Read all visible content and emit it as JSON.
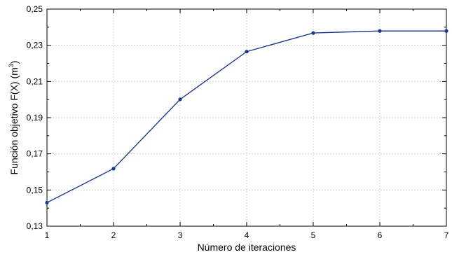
{
  "chart_data": {
    "type": "line",
    "xlabel": "Número de iteraciones",
    "ylabel": "Función objetivo F(X) (m",
    "ylabel_superscript": "3",
    "ylabel_suffix": ")",
    "xlim": [
      1,
      7
    ],
    "ylim": [
      0.13,
      0.25
    ],
    "x_ticks": [
      1,
      2,
      3,
      4,
      5,
      6,
      7
    ],
    "x_tick_labels": [
      "1",
      "2",
      "3",
      "4",
      "5",
      "6",
      "7"
    ],
    "y_ticks": [
      0.13,
      0.15,
      0.17,
      0.19,
      0.21,
      0.23,
      0.25
    ],
    "y_tick_labels": [
      "0,13",
      "0,15",
      "0,17",
      "0,19",
      "0,21",
      "0,23",
      "0,25"
    ],
    "grid": true,
    "series": [
      {
        "x": [
          1,
          2,
          3,
          4,
          5,
          6,
          7
        ],
        "y": [
          0.143,
          0.1618,
          0.2001,
          0.2265,
          0.2368,
          0.2379,
          0.2379
        ],
        "color": "#1a3a8c"
      }
    ]
  }
}
